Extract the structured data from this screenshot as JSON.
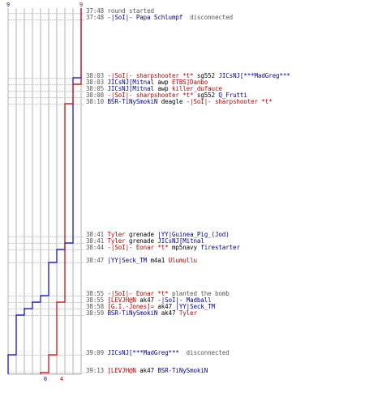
{
  "chart_data": {
    "type": "line",
    "title": "",
    "xlabel": "",
    "ylabel": "",
    "y_top_labels": {
      "left": "9",
      "right": "9"
    },
    "y_bottom_labels": {
      "left": "0",
      "right": "4"
    },
    "series": [
      {
        "color": "#0000cc",
        "steps": [
          {
            "event": 0,
            "value": 9
          },
          {
            "event": 2,
            "value": 8
          },
          {
            "event": 3,
            "value": 8
          },
          {
            "event": 4,
            "value": 8
          },
          {
            "event": 5,
            "value": 8
          },
          {
            "event": 6,
            "value": 8
          },
          {
            "event": 7,
            "value": 8
          },
          {
            "event": 8,
            "value": 7
          },
          {
            "event": 9,
            "value": 6
          },
          {
            "event": 10,
            "value": 5
          },
          {
            "event": 11,
            "value": 4
          },
          {
            "event": 12,
            "value": 3
          },
          {
            "event": 13,
            "value": 2
          },
          {
            "event": 14,
            "value": 1
          },
          {
            "event": 15,
            "value": 0
          }
        ]
      },
      {
        "color": "#cc0000",
        "steps": [
          {
            "event": 0,
            "value": 9
          },
          {
            "event": 2,
            "value": 9
          },
          {
            "event": 3,
            "value": 8
          },
          {
            "event": 6,
            "value": 7
          },
          {
            "event": 12,
            "value": 6
          },
          {
            "event": 15,
            "value": 5
          },
          {
            "event": 16,
            "value": 4
          }
        ]
      }
    ]
  },
  "log": [
    {
      "time": "37:48",
      "parts": [
        {
          "text": "round started",
          "c": "gray"
        }
      ]
    },
    {
      "time": "37:48",
      "parts": [
        {
          "text": "-|SoI|- Papa Schlumpf",
          "c": "blue"
        },
        {
          "text": "  disconnected",
          "c": "gray"
        }
      ]
    },
    {
      "time": "38:03",
      "parts": [
        {
          "text": "-|SoI|- sharpshooter *t*",
          "c": "red"
        },
        {
          "text": " sg552 ",
          "c": "blk"
        },
        {
          "text": "JICsNJ[***MadGreg***",
          "c": "blue"
        }
      ]
    },
    {
      "time": "38:03",
      "parts": [
        {
          "text": "JICsNJ[Mitnal",
          "c": "blue"
        },
        {
          "text": " awp ",
          "c": "blk"
        },
        {
          "text": "ETBS]Danbo",
          "c": "red"
        }
      ]
    },
    {
      "time": "38:05",
      "parts": [
        {
          "text": "JICsNJ[Mitnal",
          "c": "blue"
        },
        {
          "text": " awp ",
          "c": "blk"
        },
        {
          "text": "killer_dufauce",
          "c": "red"
        }
      ]
    },
    {
      "time": "38:08",
      "parts": [
        {
          "text": "-|SoI|- sharpshooter *t*",
          "c": "red"
        },
        {
          "text": " sg552 ",
          "c": "blk"
        },
        {
          "text": "Q_Frutti",
          "c": "blue"
        }
      ]
    },
    {
      "time": "38:10",
      "parts": [
        {
          "text": "BSR-TiNySmokiN",
          "c": "blue"
        },
        {
          "text": " deagle ",
          "c": "blk"
        },
        {
          "text": "-|SoI|- sharpshooter *t*",
          "c": "red"
        }
      ]
    },
    {
      "time": "38:41",
      "parts": [
        {
          "text": "Tyler",
          "c": "red"
        },
        {
          "text": " grenade ",
          "c": "blk"
        },
        {
          "text": "|YY|Guinea_Pig_(Jod)",
          "c": "blue"
        }
      ]
    },
    {
      "time": "38:41",
      "parts": [
        {
          "text": "Tyler",
          "c": "red"
        },
        {
          "text": " grenade ",
          "c": "blk"
        },
        {
          "text": "JICsNJ[Mitnal",
          "c": "blue"
        }
      ]
    },
    {
      "time": "38:44",
      "parts": [
        {
          "text": "-|SoI|- Eonar *t*",
          "c": "red"
        },
        {
          "text": " mp5navy ",
          "c": "blk"
        },
        {
          "text": "firestarter",
          "c": "blue"
        }
      ]
    },
    {
      "time": "38:47",
      "parts": [
        {
          "text": "|YY|Seck_TM",
          "c": "blue"
        },
        {
          "text": " m4a1 ",
          "c": "blk"
        },
        {
          "text": "Ulumullu",
          "c": "red"
        }
      ]
    },
    {
      "time": "38:55",
      "parts": [
        {
          "text": "-|SoI|- Eonar *t*",
          "c": "red"
        },
        {
          "text": " planted the bomb",
          "c": "gray"
        }
      ]
    },
    {
      "time": "38:55",
      "parts": [
        {
          "text": "[LEVJH@N",
          "c": "red"
        },
        {
          "text": " ak47 ",
          "c": "blk"
        },
        {
          "text": "-|SoI|- Madball",
          "c": "blue"
        }
      ]
    },
    {
      "time": "38:58",
      "parts": [
        {
          "text": "[G.I.-Jones]=",
          "c": "red"
        },
        {
          "text": " ak47 ",
          "c": "blk"
        },
        {
          "text": "|YY|Seck_TM",
          "c": "blue"
        }
      ]
    },
    {
      "time": "38:59",
      "parts": [
        {
          "text": "BSR-TiNySmokiN",
          "c": "blue"
        },
        {
          "text": " ak47 ",
          "c": "blk"
        },
        {
          "text": "Tyler",
          "c": "red"
        }
      ]
    },
    {
      "time": "39:09",
      "parts": [
        {
          "text": "JICsNJ[***MadGreg***",
          "c": "blue"
        },
        {
          "text": "  disconnected",
          "c": "gray"
        }
      ]
    },
    {
      "time": "39:13",
      "parts": [
        {
          "text": "[LEVJH@N",
          "c": "red"
        },
        {
          "text": " ak47 ",
          "c": "blk"
        },
        {
          "text": "BSR-TiNySmokiN",
          "c": "blue"
        }
      ]
    }
  ]
}
